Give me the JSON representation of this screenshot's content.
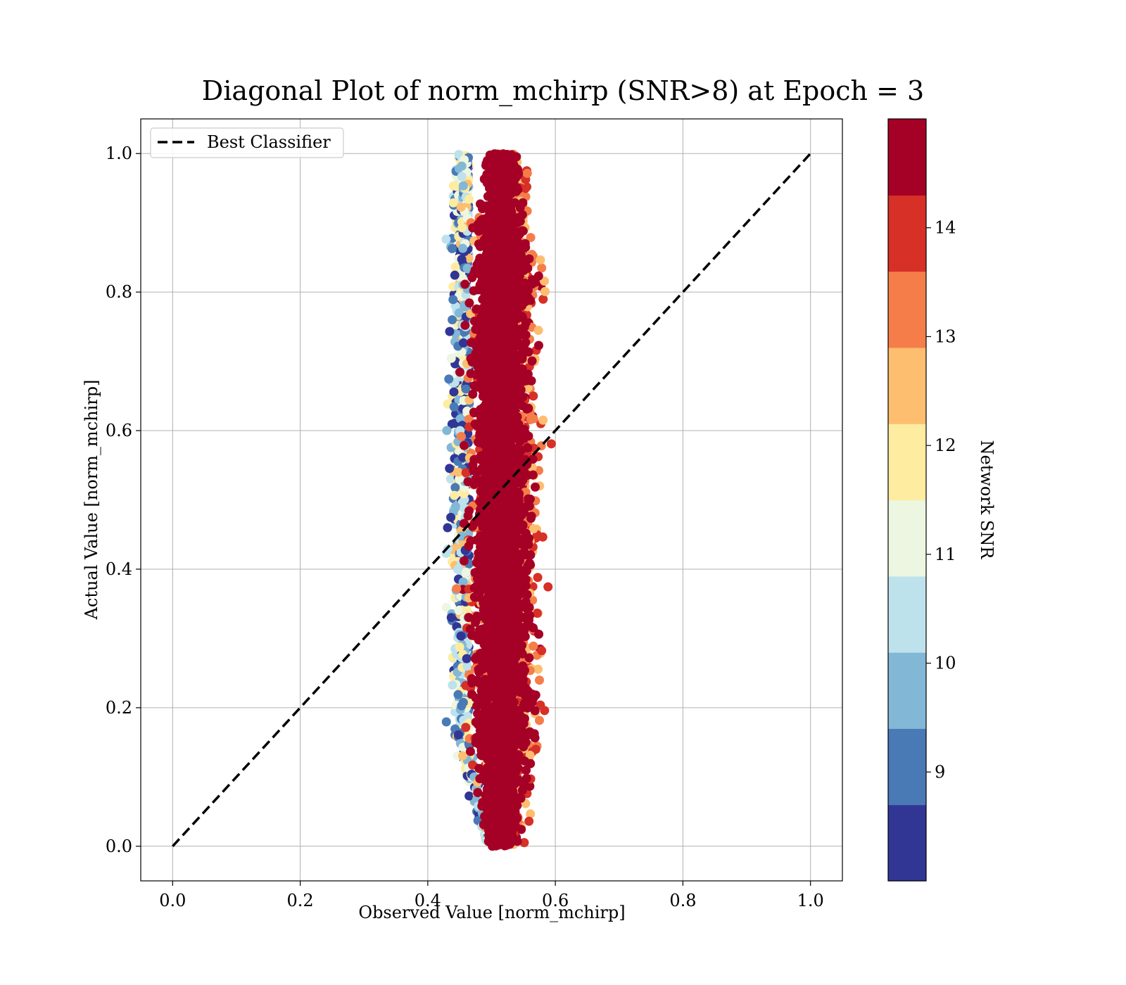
{
  "chart_data": {
    "type": "scatter",
    "title": "Diagonal Plot of norm_mchirp (SNR>8) at Epoch = 3",
    "xlabel": "Observed Value [norm_mchirp]",
    "ylabel": "Actual Value [norm_mchirp]",
    "xlim": [
      -0.05,
      1.05
    ],
    "ylim": [
      -0.05,
      1.05
    ],
    "xticks": [
      0.0,
      0.2,
      0.4,
      0.6,
      0.8,
      1.0
    ],
    "yticks": [
      0.0,
      0.2,
      0.4,
      0.6,
      0.8,
      1.0
    ],
    "x_tick_labels": [
      "0.0",
      "0.2",
      "0.4",
      "0.6",
      "0.8",
      "1.0"
    ],
    "y_tick_labels": [
      "0.0",
      "0.2",
      "0.4",
      "0.6",
      "0.8",
      "1.0"
    ],
    "grid": true,
    "legend_position": "top-left",
    "series": [
      {
        "name": "Best Classifier",
        "kind": "line",
        "style": "dashed",
        "color": "#000000",
        "x": [
          0.0,
          1.0
        ],
        "y": [
          0.0,
          1.0
        ]
      }
    ],
    "scatter_cloud": {
      "x_center": 0.515,
      "x_spread_core": 0.028,
      "x_range_low_snr": [
        0.42,
        0.48
      ],
      "x_range_high_snr": [
        0.46,
        0.59
      ],
      "y_range": [
        0.0,
        1.0
      ],
      "color_by": "Network SNR"
    },
    "colorbar": {
      "label": "Network SNR",
      "range": [
        8,
        15
      ],
      "ticks": [
        9,
        10,
        11,
        12,
        13,
        14
      ],
      "tick_labels": [
        "9",
        "10",
        "11",
        "12",
        "13",
        "14"
      ],
      "colors": [
        "#313695",
        "#4a7ab6",
        "#82b7d6",
        "#bde2ec",
        "#edf6e0",
        "#feeca1",
        "#fdbe6f",
        "#f57d4a",
        "#d73027",
        "#a50026"
      ]
    }
  }
}
